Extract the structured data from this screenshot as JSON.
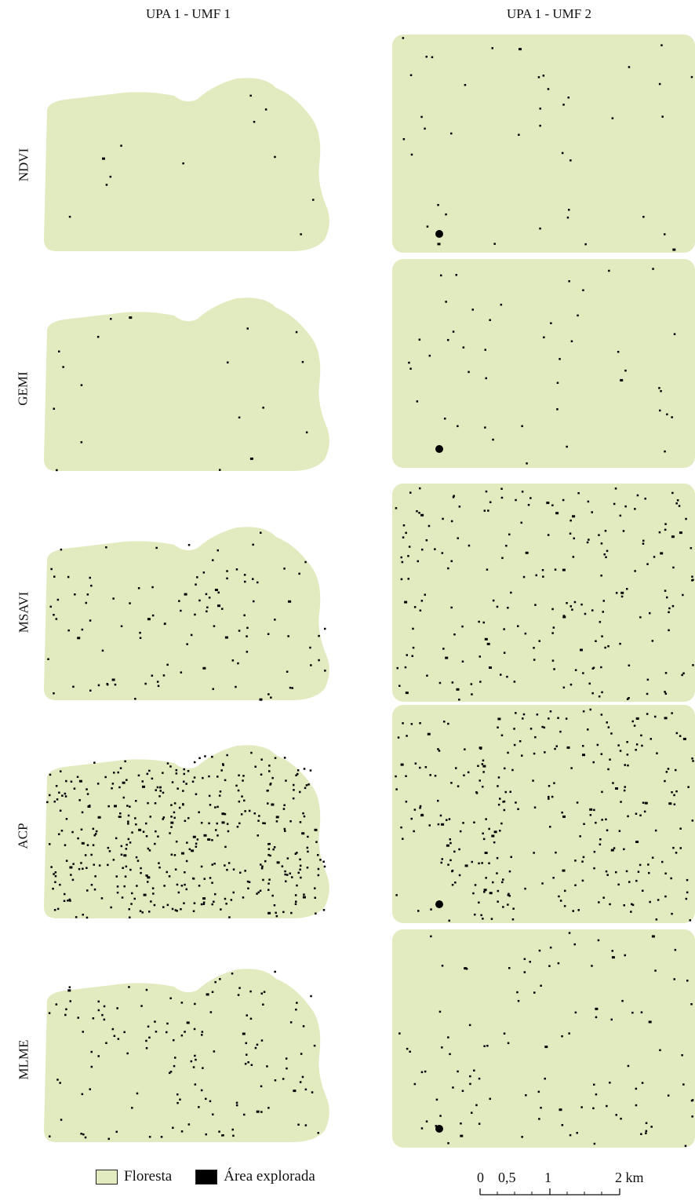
{
  "columns": [
    "UPA 1 - UMF 1",
    "UPA 1 - UMF 2"
  ],
  "rows": [
    "NDVI",
    "GEMI",
    "MSAVI",
    "ACP",
    "MLME"
  ],
  "colors": {
    "floresta": "#e2ebbf",
    "explorada": "#000000"
  },
  "legend": {
    "floresta": "Floresta",
    "explorada": "Área explorada"
  },
  "scalebar": {
    "labels": [
      "0",
      "0,5",
      "1",
      "2 km"
    ],
    "values_km": [
      0,
      0.5,
      1,
      2
    ]
  },
  "pixel_density": {
    "NDVI": [
      12,
      40
    ],
    "GEMI": [
      18,
      45
    ],
    "MSAVI": [
      110,
      210
    ],
    "ACP": [
      420,
      300
    ],
    "MLME": [
      140,
      110
    ]
  }
}
